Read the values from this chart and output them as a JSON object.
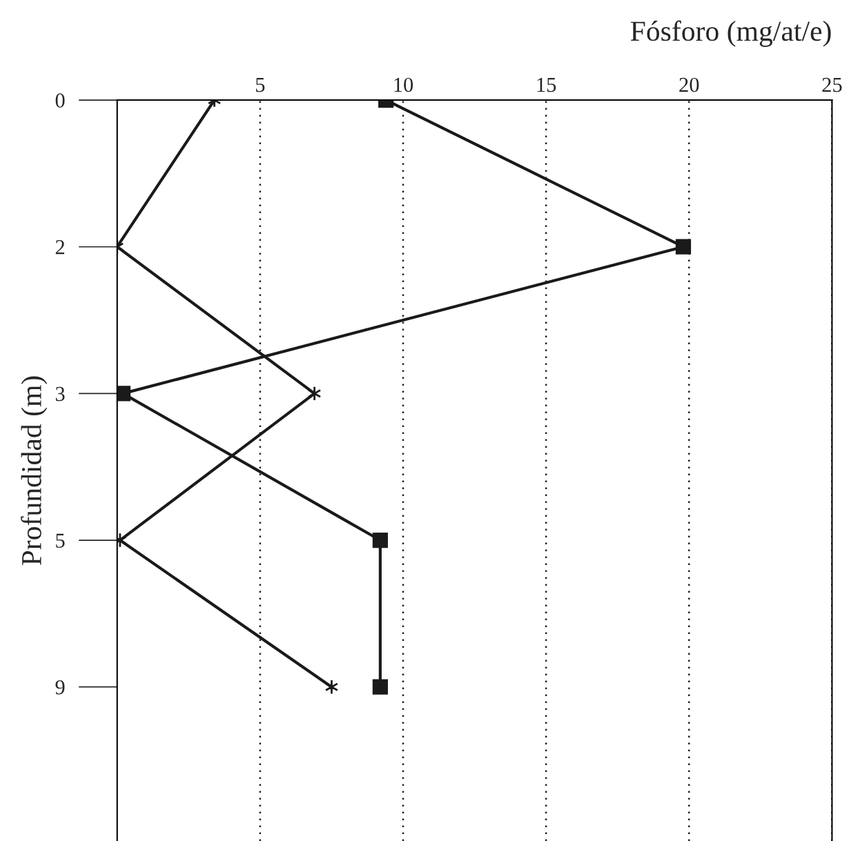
{
  "chart_data": {
    "type": "line",
    "title": "Fósforo (mg/at/e)",
    "ylabel": "Profundidad (m)",
    "categories": [
      "0",
      "2",
      "3",
      "5",
      "9"
    ],
    "series": [
      {
        "color": "#1a1a1a",
        "marker": "cross",
        "values": [
          3.4,
          0,
          6.9,
          0.1,
          7.5
        ]
      },
      {
        "color": "#1a1a1a",
        "marker": "square",
        "values": [
          9.4,
          19.8,
          0.2,
          9.2,
          9.2
        ]
      }
    ],
    "orientation": "horizontal",
    "xlim": [
      0,
      25
    ],
    "xticks": [
      5,
      10,
      15,
      20,
      25
    ],
    "grid": "x",
    "line_style": "solid",
    "legend": false
  }
}
